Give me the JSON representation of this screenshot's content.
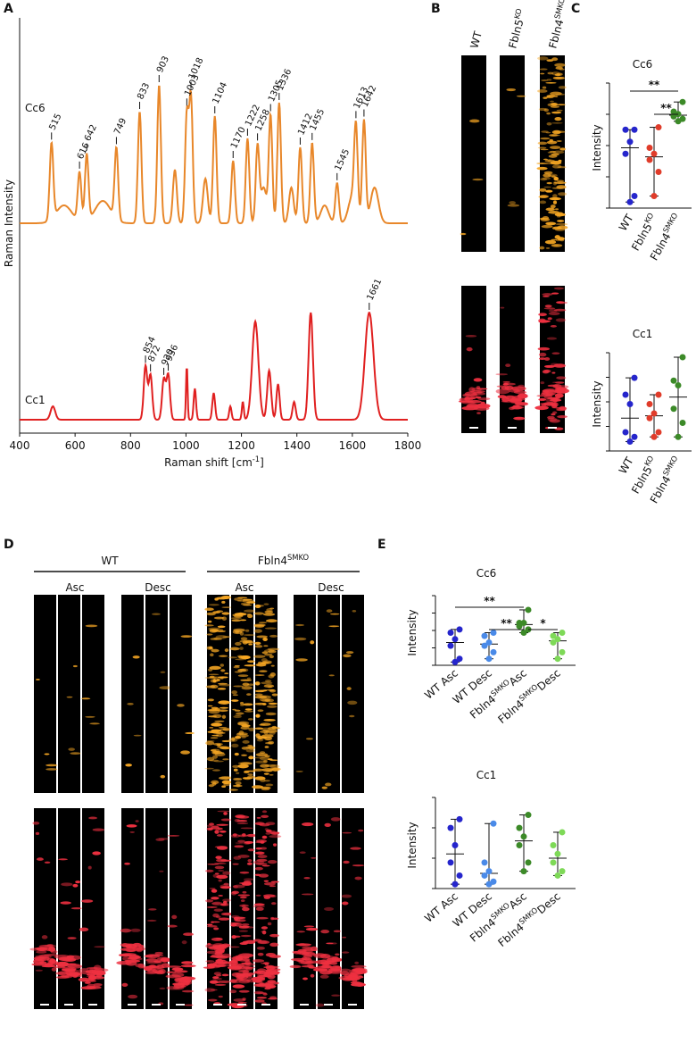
{
  "panel_a": {
    "label": "A",
    "y_axis_label": "Raman Intensity",
    "x_axis_label": {
      "base": "Raman shift [cm",
      "sup": "-1",
      "end": "]"
    },
    "x_ticks": [
      400,
      600,
      800,
      1000,
      1200,
      1400,
      1600,
      1800
    ],
    "spectra": [
      {
        "name": "Cc6",
        "peaks": [
          515,
          616,
          642,
          749,
          833,
          903,
          1003,
          1018,
          1104,
          1170,
          1222,
          1258,
          1305,
          1336,
          1412,
          1455,
          1545,
          1613,
          1642
        ]
      },
      {
        "name": "Cc1",
        "peaks": [
          854,
          872,
          920,
          936,
          1661
        ]
      }
    ]
  },
  "panel_b": {
    "label": "B",
    "columns": [
      {
        "base": "WT"
      },
      {
        "base": "Fbln5",
        "sup": "KO"
      },
      {
        "base": "Fbln4",
        "sup": "SMKO"
      }
    ]
  },
  "panel_c": {
    "label": "C",
    "y_axis_label": "Intensity",
    "categories": [
      {
        "base": "WT"
      },
      {
        "base": "Fbln5",
        "sup": "KO"
      },
      {
        "base": "Fbln4",
        "sup": "SMKO"
      }
    ],
    "plots": [
      {
        "title": "Cc6",
        "significance": [
          "**",
          "**"
        ]
      },
      {
        "title": "Cc1"
      }
    ]
  },
  "panel_d": {
    "label": "D",
    "groups": [
      {
        "name": {
          "base": "WT"
        },
        "subgroups": [
          "Asc",
          "Desc"
        ]
      },
      {
        "name": {
          "base": "Fbln4",
          "sup": "SMKO"
        },
        "subgroups": [
          "Asc",
          "Desc"
        ]
      }
    ]
  },
  "panel_e": {
    "label": "E",
    "y_axis_label": "Intensity",
    "categories": [
      {
        "base": "WT Asc"
      },
      {
        "base": "WT Desc"
      },
      {
        "base": "Fbln4",
        "sup": "SMKO",
        "end": "Asc"
      },
      {
        "base": "Fbln4",
        "sup": "SMKO",
        "end": "Desc"
      }
    ],
    "plots": [
      {
        "title": "Cc6",
        "significance": [
          "**",
          "**",
          "*"
        ]
      },
      {
        "title": "Cc1"
      }
    ]
  }
}
